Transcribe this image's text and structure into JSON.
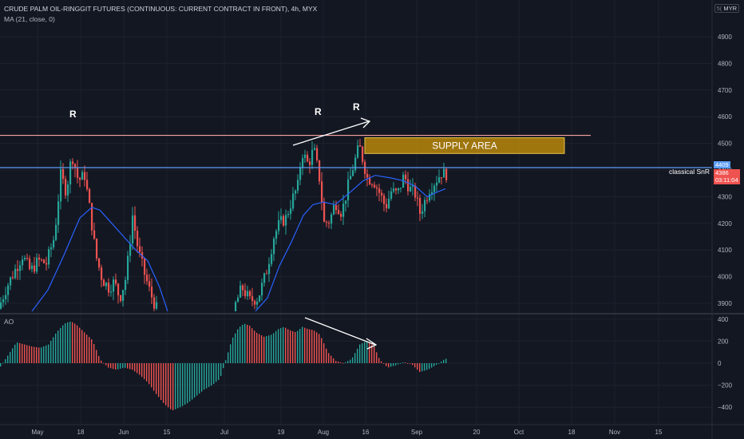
{
  "header": {
    "title": "CRUDE PALM OIL-RINGGIT FUTURES (CONTINUOUS: CURRENT CONTRACT IN FRONT), 4h, MYX",
    "indicator": "MA (21, close, 0)",
    "currency": "MYR",
    "currency_prefix": "5("
  },
  "ao_label": "AO",
  "price_badges": {
    "level": "4409",
    "last": "4386",
    "countdown": "03:11:04"
  },
  "annotations": {
    "r_labels": [
      "R",
      "R",
      "R"
    ],
    "supply_label": "SUPPLY AREA",
    "snr_label": "classical SnR"
  },
  "colors": {
    "background": "#131722",
    "up": "#26a69a",
    "down": "#ef5350",
    "ma": "#2962ff",
    "resistance": "#f7a1a1",
    "snr": "#5b9cf6",
    "supply_fill": "#b8860b",
    "ao_up": "#26a69a",
    "ao_down": "#ef5350"
  },
  "chart_data": [
    {
      "type": "candlestick",
      "title": "CRUDE PALM OIL-RINGGIT FUTURES (CONTINUOUS: CURRENT CONTRACT IN FRONT), 4h, MYX",
      "x_ticks": [
        "May",
        "18",
        "Jun",
        "15",
        "Jul",
        "19",
        "Aug",
        "16",
        "Sep",
        "20",
        "Oct",
        "18",
        "Nov",
        "15"
      ],
      "y_ticks": [
        3900,
        4000,
        4100,
        4200,
        4300,
        4400,
        4500,
        4600,
        4700,
        4800,
        4900
      ],
      "ylim": [
        3855,
        5000
      ],
      "close_path": [
        [
          0,
          3880
        ],
        [
          10,
          3960
        ],
        [
          20,
          4020
        ],
        [
          30,
          4080
        ],
        [
          40,
          4020
        ],
        [
          50,
          4060
        ],
        [
          60,
          4050
        ],
        [
          70,
          4150
        ],
        [
          78,
          4380
        ],
        [
          85,
          4320
        ],
        [
          92,
          4460
        ],
        [
          100,
          4360
        ],
        [
          108,
          4380
        ],
        [
          115,
          4240
        ],
        [
          122,
          4080
        ],
        [
          130,
          3990
        ],
        [
          138,
          3960
        ],
        [
          145,
          3980
        ],
        [
          152,
          3920
        ],
        [
          160,
          4000
        ],
        [
          168,
          4230
        ],
        [
          175,
          4100
        ],
        [
          182,
          4020
        ],
        [
          190,
          3940
        ],
        [
          198,
          3880
        ],
        [
          295,
          3880
        ],
        [
          305,
          3960
        ],
        [
          315,
          3910
        ],
        [
          325,
          3920
        ],
        [
          335,
          4010
        ],
        [
          345,
          4150
        ],
        [
          352,
          4200
        ],
        [
          360,
          4220
        ],
        [
          368,
          4290
        ],
        [
          375,
          4340
        ],
        [
          380,
          4470
        ],
        [
          388,
          4420
        ],
        [
          395,
          4480
        ],
        [
          402,
          4370
        ],
        [
          408,
          4200
        ],
        [
          415,
          4210
        ],
        [
          422,
          4280
        ],
        [
          430,
          4240
        ],
        [
          438,
          4340
        ],
        [
          445,
          4420
        ],
        [
          452,
          4490
        ],
        [
          458,
          4420
        ],
        [
          462,
          4370
        ],
        [
          470,
          4360
        ],
        [
          478,
          4310
        ],
        [
          485,
          4260
        ],
        [
          492,
          4320
        ],
        [
          500,
          4310
        ],
        [
          508,
          4380
        ],
        [
          515,
          4330
        ],
        [
          522,
          4310
        ],
        [
          528,
          4240
        ],
        [
          535,
          4290
        ],
        [
          540,
          4330
        ],
        [
          545,
          4350
        ],
        [
          550,
          4370
        ],
        [
          555,
          4390
        ],
        [
          558,
          4386
        ]
      ],
      "ma_path": [
        [
          40,
          3870
        ],
        [
          60,
          3950
        ],
        [
          80,
          4080
        ],
        [
          100,
          4220
        ],
        [
          115,
          4260
        ],
        [
          125,
          4250
        ],
        [
          140,
          4200
        ],
        [
          155,
          4150
        ],
        [
          170,
          4100
        ],
        [
          185,
          4060
        ],
        [
          200,
          3960
        ],
        [
          210,
          3870
        ],
        [
          320,
          3870
        ],
        [
          335,
          3920
        ],
        [
          350,
          4040
        ],
        [
          365,
          4130
        ],
        [
          380,
          4230
        ],
        [
          392,
          4270
        ],
        [
          405,
          4280
        ],
        [
          420,
          4270
        ],
        [
          440,
          4320
        ],
        [
          455,
          4360
        ],
        [
          470,
          4380
        ],
        [
          490,
          4370
        ],
        [
          505,
          4360
        ],
        [
          520,
          4340
        ],
        [
          535,
          4300
        ],
        [
          550,
          4320
        ],
        [
          558,
          4330
        ]
      ],
      "resistance_level": 4530,
      "snr_level": 4409,
      "supply_area": [
        4462,
        4521
      ]
    },
    {
      "type": "bar",
      "title": "AO",
      "y_ticks": [
        400,
        200,
        0,
        -200,
        -400
      ],
      "ylim": [
        -480,
        440
      ],
      "envelope": [
        [
          0,
          -30
        ],
        [
          10,
          80
        ],
        [
          20,
          190
        ],
        [
          30,
          170
        ],
        [
          40,
          150
        ],
        [
          50,
          140
        ],
        [
          60,
          170
        ],
        [
          70,
          280
        ],
        [
          80,
          360
        ],
        [
          88,
          380
        ],
        [
          95,
          350
        ],
        [
          105,
          280
        ],
        [
          115,
          210
        ],
        [
          125,
          30
        ],
        [
          135,
          -40
        ],
        [
          145,
          -60
        ],
        [
          155,
          -40
        ],
        [
          165,
          -60
        ],
        [
          175,
          -110
        ],
        [
          185,
          -180
        ],
        [
          195,
          -280
        ],
        [
          205,
          -370
        ],
        [
          215,
          -430
        ],
        [
          225,
          -400
        ],
        [
          235,
          -360
        ],
        [
          245,
          -300
        ],
        [
          255,
          -240
        ],
        [
          265,
          -200
        ],
        [
          275,
          -140
        ],
        [
          283,
          50
        ],
        [
          290,
          220
        ],
        [
          298,
          320
        ],
        [
          305,
          360
        ],
        [
          312,
          340
        ],
        [
          320,
          280
        ],
        [
          330,
          240
        ],
        [
          340,
          260
        ],
        [
          348,
          310
        ],
        [
          355,
          330
        ],
        [
          362,
          300
        ],
        [
          370,
          280
        ],
        [
          378,
          330
        ],
        [
          385,
          310
        ],
        [
          392,
          300
        ],
        [
          400,
          260
        ],
        [
          410,
          100
        ],
        [
          420,
          20
        ],
        [
          430,
          0
        ],
        [
          440,
          40
        ],
        [
          450,
          170
        ],
        [
          458,
          200
        ],
        [
          462,
          190
        ],
        [
          468,
          150
        ],
        [
          475,
          30
        ],
        [
          485,
          -40
        ],
        [
          495,
          -20
        ],
        [
          505,
          10
        ],
        [
          515,
          -10
        ],
        [
          525,
          -80
        ],
        [
          535,
          -60
        ],
        [
          545,
          -20
        ],
        [
          555,
          30
        ],
        [
          558,
          40
        ]
      ]
    }
  ]
}
